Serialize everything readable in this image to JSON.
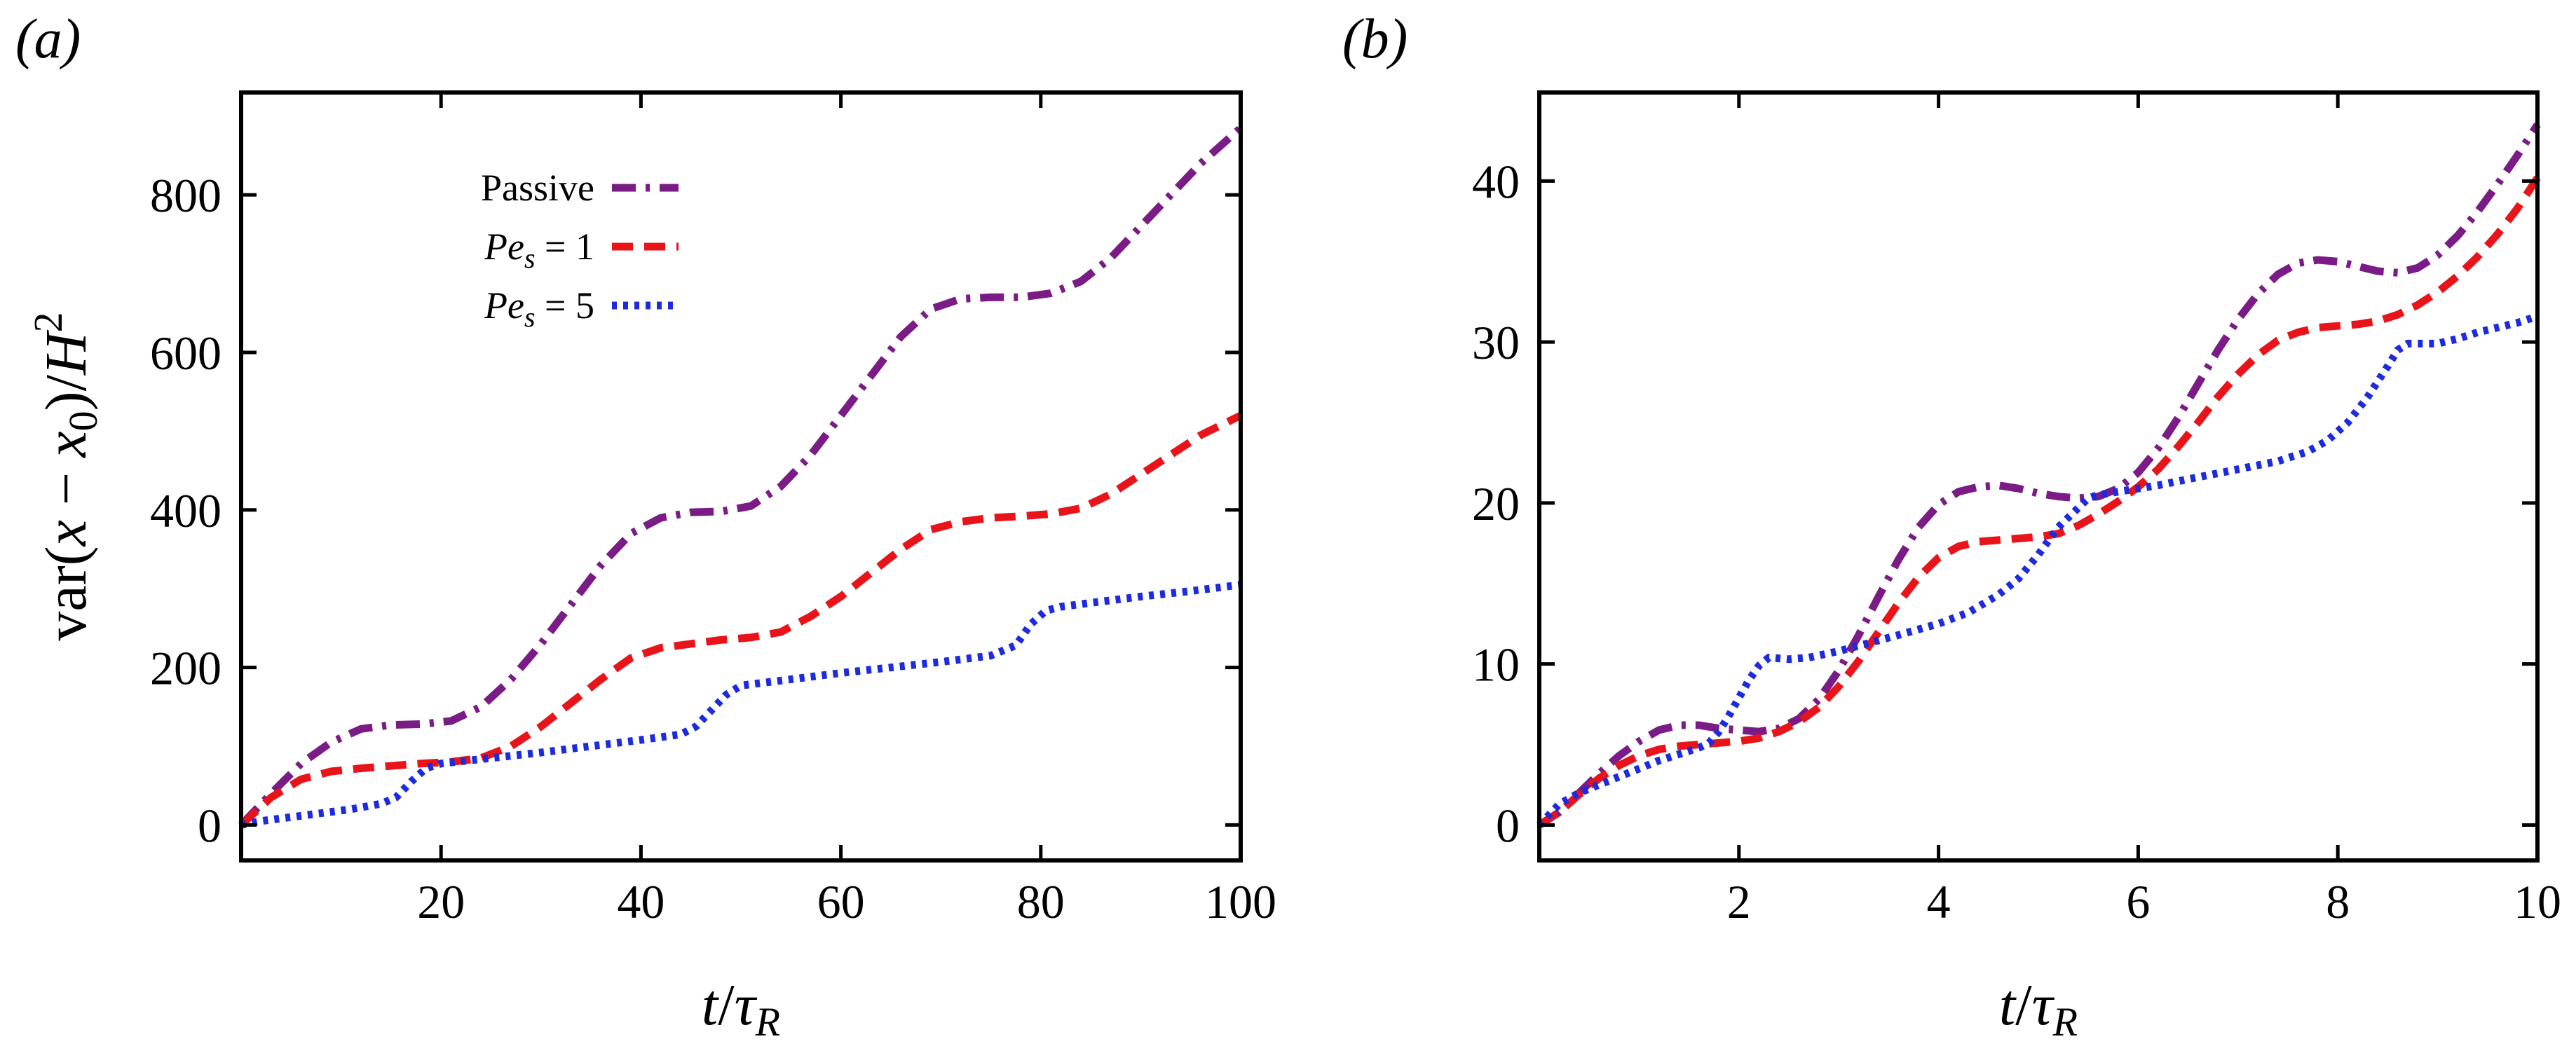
{
  "chart_data": [
    {
      "type": "line",
      "panel_label": "(a)",
      "xlabel": "t/τ_R",
      "ylabel": "var(x − x_0)/H^2",
      "xlim": [
        0,
        100
      ],
      "ylim": [
        -45,
        930
      ],
      "xticks": [
        20,
        40,
        60,
        80,
        100
      ],
      "yticks": [
        0,
        200,
        400,
        600,
        800
      ],
      "grid": false,
      "legend_position": "top-left",
      "legend": [
        {
          "series": 0,
          "text": "Passive"
        },
        {
          "series": 1,
          "text": "Pe_s = 1"
        },
        {
          "series": 2,
          "text": "Pe_s = 5"
        }
      ],
      "series": [
        {
          "name": "Passive",
          "color": "#7B1C86",
          "style": "dash-dot",
          "x": [
            0,
            3,
            6,
            9,
            12,
            15,
            18,
            21,
            24,
            27,
            30,
            33,
            36,
            39,
            42,
            45,
            48,
            51,
            54,
            57,
            60,
            63,
            66,
            69,
            72,
            75,
            78,
            81,
            84,
            87,
            90,
            93,
            96,
            100
          ],
          "y": [
            0,
            40,
            78,
            105,
            122,
            127,
            128,
            132,
            150,
            185,
            230,
            280,
            330,
            370,
            390,
            397,
            398,
            405,
            430,
            470,
            520,
            570,
            620,
            655,
            668,
            670,
            670,
            675,
            690,
            720,
            760,
            800,
            840,
            885
          ]
        },
        {
          "name": "Pe_s = 1",
          "color": "#E8141A",
          "style": "dashed",
          "x": [
            0,
            3,
            6,
            9,
            12,
            15,
            18,
            21,
            24,
            27,
            30,
            33,
            36,
            39,
            42,
            45,
            48,
            51,
            54,
            57,
            60,
            63,
            66,
            69,
            72,
            75,
            78,
            81,
            84,
            87,
            90,
            93,
            96,
            100
          ],
          "y": [
            0,
            35,
            58,
            68,
            72,
            75,
            78,
            80,
            85,
            100,
            125,
            155,
            185,
            212,
            225,
            230,
            235,
            238,
            245,
            265,
            290,
            320,
            350,
            375,
            385,
            390,
            392,
            395,
            402,
            420,
            445,
            470,
            495,
            520
          ]
        },
        {
          "name": "Pe_s = 5",
          "color": "#1C2BE0",
          "style": "dotted",
          "x": [
            0,
            2,
            5,
            8,
            11,
            14,
            15.5,
            17,
            18.5,
            20,
            25,
            30,
            35,
            40,
            44,
            45.5,
            47,
            48.5,
            50,
            55,
            60,
            65,
            70,
            75,
            77.5,
            79,
            80.5,
            82,
            85,
            90,
            95,
            100
          ],
          "y": [
            0,
            5,
            10,
            15,
            20,
            27,
            35,
            55,
            72,
            78,
            85,
            92,
            100,
            108,
            115,
            125,
            145,
            165,
            177,
            185,
            193,
            200,
            207,
            215,
            228,
            255,
            272,
            277,
            282,
            290,
            297,
            305
          ]
        }
      ]
    },
    {
      "type": "line",
      "panel_label": "(b)",
      "xlabel": "t/τ_R",
      "ylabel": "",
      "xlim": [
        0,
        10
      ],
      "ylim": [
        -2.2,
        45.5
      ],
      "xticks": [
        2,
        4,
        6,
        8,
        10
      ],
      "yticks": [
        0,
        10,
        20,
        30,
        40
      ],
      "grid": false,
      "series": [
        {
          "name": "Passive",
          "color": "#7B1C86",
          "style": "dash-dot",
          "x": [
            0,
            0.2,
            0.4,
            0.6,
            0.8,
            1.0,
            1.2,
            1.4,
            1.6,
            1.8,
            2.0,
            2.2,
            2.4,
            2.6,
            2.8,
            3.0,
            3.2,
            3.4,
            3.6,
            3.8,
            4.0,
            4.2,
            4.4,
            4.6,
            4.8,
            5.0,
            5.2,
            5.4,
            5.6,
            5.8,
            6.0,
            6.2,
            6.4,
            6.6,
            6.8,
            7.0,
            7.2,
            7.4,
            7.6,
            7.8,
            8.0,
            8.2,
            8.4,
            8.6,
            8.8,
            9.0,
            9.2,
            9.4,
            9.6,
            9.8,
            10.0
          ],
          "y": [
            0,
            0.8,
            2.0,
            3.2,
            4.3,
            5.2,
            5.9,
            6.2,
            6.2,
            6.0,
            5.9,
            5.8,
            6.0,
            6.6,
            7.8,
            9.6,
            11.8,
            14.2,
            16.5,
            18.5,
            19.9,
            20.7,
            21.0,
            21.1,
            20.9,
            20.6,
            20.4,
            20.3,
            20.4,
            20.9,
            21.9,
            23.4,
            25.3,
            27.4,
            29.5,
            31.4,
            33.0,
            34.2,
            34.9,
            35.1,
            35.0,
            34.7,
            34.4,
            34.3,
            34.6,
            35.4,
            36.6,
            38.1,
            39.8,
            41.6,
            43.5
          ]
        },
        {
          "name": "Pe_s = 1",
          "color": "#E8141A",
          "style": "dashed",
          "x": [
            0,
            0.2,
            0.4,
            0.6,
            0.8,
            1.0,
            1.2,
            1.4,
            1.6,
            1.8,
            2.0,
            2.2,
            2.4,
            2.6,
            2.8,
            3.0,
            3.2,
            3.4,
            3.6,
            3.8,
            4.0,
            4.2,
            4.4,
            4.6,
            4.8,
            5.0,
            5.2,
            5.4,
            5.6,
            5.8,
            6.0,
            6.2,
            6.4,
            6.6,
            6.8,
            7.0,
            7.2,
            7.4,
            7.6,
            7.8,
            8.0,
            8.2,
            8.4,
            8.6,
            8.8,
            9.0,
            9.2,
            9.4,
            9.6,
            9.8,
            10.0
          ],
          "y": [
            0,
            0.8,
            1.9,
            2.9,
            3.7,
            4.3,
            4.7,
            4.9,
            5.0,
            5.1,
            5.2,
            5.4,
            5.8,
            6.4,
            7.3,
            8.6,
            10.2,
            12.0,
            13.8,
            15.4,
            16.6,
            17.3,
            17.6,
            17.7,
            17.8,
            17.9,
            18.1,
            18.6,
            19.3,
            20.1,
            21.0,
            22.1,
            23.5,
            25.0,
            26.6,
            28.0,
            29.2,
            30.1,
            30.6,
            30.9,
            31.0,
            31.1,
            31.3,
            31.7,
            32.3,
            33.1,
            34.1,
            35.3,
            36.7,
            38.3,
            40.2
          ]
        },
        {
          "name": "Pe_s = 5",
          "color": "#1C2BE0",
          "style": "dotted",
          "x": [
            0,
            0.2,
            0.4,
            0.6,
            0.8,
            1.0,
            1.2,
            1.4,
            1.6,
            1.7,
            1.8,
            1.9,
            2.0,
            2.1,
            2.2,
            2.3,
            2.5,
            2.7,
            3.0,
            3.3,
            3.6,
            4.0,
            4.3,
            4.6,
            4.8,
            5.0,
            5.2,
            5.4,
            5.5,
            5.6,
            5.7,
            5.9,
            6.2,
            6.6,
            7.0,
            7.4,
            7.7,
            7.9,
            8.1,
            8.3,
            8.5,
            8.6,
            8.7,
            8.8,
            9.0,
            9.2,
            9.4,
            9.6,
            9.8,
            10.0
          ],
          "y": [
            0,
            1.3,
            2.0,
            2.5,
            3.0,
            3.5,
            4.0,
            4.4,
            4.8,
            5.1,
            5.8,
            6.8,
            7.9,
            9.0,
            9.9,
            10.4,
            10.3,
            10.4,
            10.8,
            11.3,
            11.8,
            12.5,
            13.2,
            14.3,
            15.3,
            16.8,
            18.5,
            19.7,
            20.3,
            20.5,
            20.6,
            20.8,
            21.1,
            21.6,
            22.1,
            22.6,
            23.2,
            23.9,
            25.0,
            26.6,
            28.5,
            29.5,
            29.9,
            29.9,
            29.9,
            30.2,
            30.6,
            30.9,
            31.2,
            31.6
          ]
        }
      ]
    }
  ]
}
